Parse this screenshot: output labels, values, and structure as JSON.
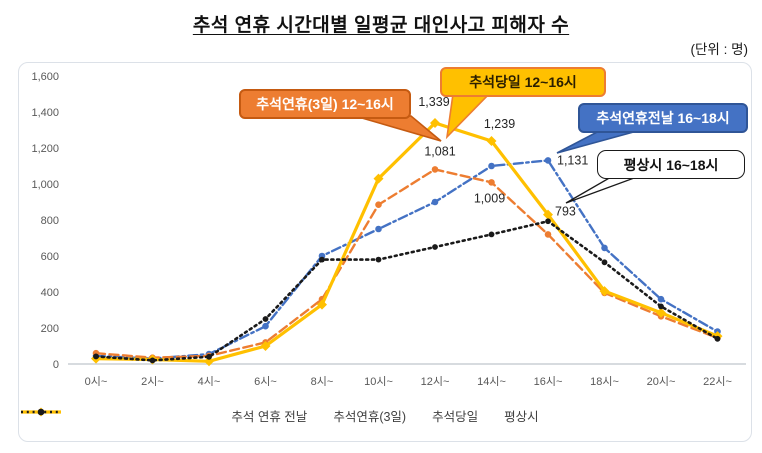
{
  "chart_data": {
    "type": "line",
    "title": "추석 연휴 시간대별 일평균 대인사고 피해자 수",
    "unit": "(단위 : 명)",
    "xlabel": "",
    "ylabel": "",
    "ylim": [
      0,
      1600
    ],
    "ytick_step": 200,
    "grid": false,
    "legend_position": "bottom",
    "categories": [
      "0시~",
      "2시~",
      "4시~",
      "6시~",
      "8시~",
      "10시~",
      "12시~",
      "14시~",
      "16시~",
      "18시~",
      "20시~",
      "22시~"
    ],
    "series": [
      {
        "name": "추석 연휴 전날",
        "color": "#4472C4",
        "style": "dashdot",
        "marker": "circle",
        "values": [
          45,
          30,
          55,
          210,
          600,
          750,
          900,
          1100,
          1131,
          645,
          360,
          180
        ]
      },
      {
        "name": "추석연휴(3일)",
        "color": "#ED7D31",
        "style": "dashed",
        "marker": "circle",
        "values": [
          60,
          35,
          45,
          120,
          360,
          885,
          1081,
          1009,
          720,
          395,
          265,
          145
        ]
      },
      {
        "name": "추석당일",
        "color": "#FFC000",
        "style": "solid",
        "marker": "diamond",
        "values": [
          30,
          25,
          15,
          100,
          330,
          1030,
          1339,
          1239,
          830,
          405,
          285,
          155
        ]
      },
      {
        "name": "평상시",
        "color": "#1A1A1A",
        "style": "dotted",
        "marker": "circle",
        "values": [
          42,
          20,
          40,
          250,
          580,
          580,
          650,
          720,
          793,
          565,
          320,
          140
        ]
      }
    ],
    "data_labels": [
      {
        "series": "추석당일",
        "category": "12시~",
        "text": "1,339"
      },
      {
        "series": "추석당일",
        "category": "14시~",
        "text": "1,239"
      },
      {
        "series": "추석연휴(3일)",
        "category": "12시~",
        "text": "1,081"
      },
      {
        "series": "추석연휴(3일)",
        "category": "14시~",
        "text": "1,009"
      },
      {
        "series": "추석 연휴 전날",
        "category": "16시~",
        "text": "1,131"
      },
      {
        "series": "평상시",
        "category": "16시~",
        "text": "793"
      }
    ],
    "annotations": [
      {
        "text": "추석연휴(3일) 12~16시",
        "fill": "#ED7D31",
        "border": "#C55A11",
        "text_color": "#FFFFFF"
      },
      {
        "text": "추석당일 12~16시",
        "fill": "#FFC000",
        "border": "#ED7D31",
        "text_color": "#2B1E00"
      },
      {
        "text": "추석연휴전날 16~18시",
        "fill": "#4472C4",
        "border": "#2F5597",
        "text_color": "#FFFFFF"
      },
      {
        "text": "평상시 16~18시",
        "fill": "#FFFFFF",
        "border": "#1A1A1A",
        "text_color": "#111111"
      }
    ]
  }
}
